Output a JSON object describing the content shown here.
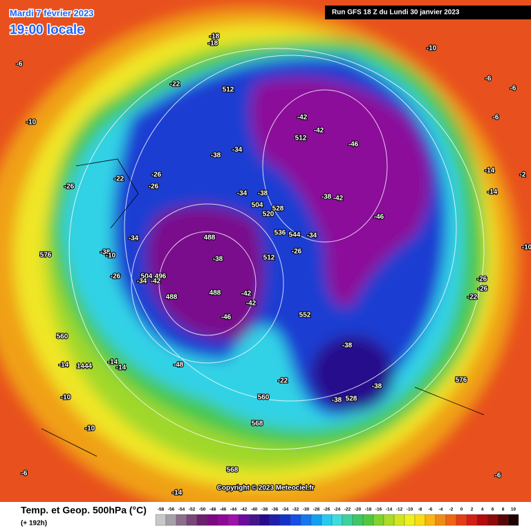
{
  "header": {
    "date": "Mardi 7 février 2023",
    "time": "19:00 locale",
    "run": "Run GFS 18 Z du Lundi 30 janvier 2023"
  },
  "footer": {
    "title": "Temp. et Geop. 500hPa (°C)",
    "lead": "(+ 192h)",
    "copyright": "Copyright © 2023 Meteociel.fr"
  },
  "map_labels": [
    "-18",
    "-18",
    "-10",
    "-6",
    "-22",
    "512",
    "-6",
    "-6",
    "-10",
    "-42",
    "-42",
    "512",
    "-46",
    "-34",
    "-38",
    "-6",
    "-26",
    "-22",
    "-26",
    "-26",
    "-14",
    "-2",
    "-34",
    "-38",
    "504",
    "528",
    "520",
    "-38",
    "-42",
    "-14",
    "-46",
    "488",
    "-34",
    "536",
    "544",
    "-34",
    "-10",
    "576",
    "-26",
    "512",
    "-38",
    "-38",
    "-10",
    "-26",
    "504",
    "496",
    "-34",
    "-42",
    "-26",
    "-26",
    "-22",
    "488",
    "488",
    "-42",
    "-42",
    "552",
    "-46",
    "560",
    "-38",
    "-48",
    "-14",
    "1444",
    "-14",
    "-14",
    "576",
    "-22",
    "-38",
    "-38",
    "528",
    "-10",
    "560",
    "568",
    "-10",
    "-6",
    "568",
    "-6",
    "-14"
  ],
  "scale": {
    "values": [
      -58,
      -56,
      -54,
      -52,
      -50,
      -48,
      -46,
      -44,
      -42,
      -40,
      -38,
      -36,
      -34,
      -32,
      -30,
      -28,
      -26,
      -24,
      -22,
      -20,
      -18,
      -16,
      -14,
      -12,
      -10,
      -8,
      -6,
      -4,
      -2,
      0,
      2,
      4,
      6,
      8,
      10
    ],
    "colors": [
      "#c8c8c8",
      "#a8a0a8",
      "#8c6e8c",
      "#784678",
      "#6e1e6e",
      "#7a0a82",
      "#8c0a96",
      "#a010aa",
      "#6e0aa0",
      "#46148c",
      "#280a8c",
      "#1e1eaa",
      "#1432c8",
      "#1450e6",
      "#1478f0",
      "#14a0f0",
      "#28c8f0",
      "#3cdcdc",
      "#3cd2a0",
      "#3cc864",
      "#50c83c",
      "#82d22d",
      "#aadc28",
      "#d2e61e",
      "#f0f01e",
      "#fadc14",
      "#fab414",
      "#f08c14",
      "#f06414",
      "#e63c14",
      "#d21e14",
      "#b40a0a",
      "#8c0a0a",
      "#5a0505",
      "#1e0000"
    ]
  }
}
